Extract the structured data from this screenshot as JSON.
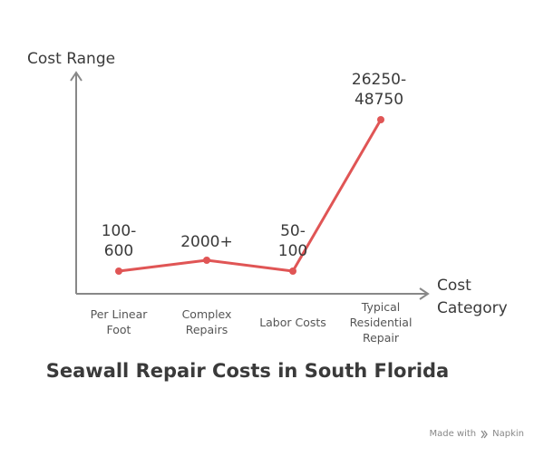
{
  "chart_data": {
    "type": "line",
    "ylabel": "Cost Range",
    "xlabel": [
      "Cost",
      "Category"
    ],
    "categories": [
      [
        "Per Linear",
        "Foot"
      ],
      [
        "Complex",
        "Repairs"
      ],
      [
        "Labor Costs"
      ],
      [
        "Typical",
        "Residential",
        "Repair"
      ]
    ],
    "values": [
      600,
      2000,
      100,
      48750
    ],
    "data_labels": [
      [
        "100-",
        "600"
      ],
      [
        "2000+"
      ],
      [
        "50-",
        "100"
      ],
      [
        "26250-",
        "48750"
      ]
    ],
    "color": "#e05555",
    "axis_color": "#888888"
  },
  "title": "Seawall Repair Costs in South Florida",
  "watermark": {
    "prefix": "Made with",
    "brand": "Napkin",
    "icon": "napkin-logo-icon"
  }
}
